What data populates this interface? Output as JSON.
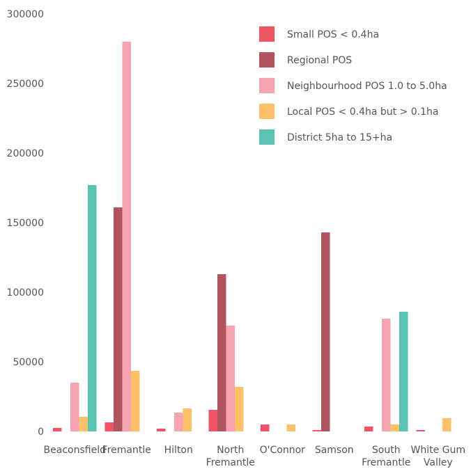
{
  "chart_data": {
    "type": "bar",
    "title": "",
    "xlabel": "",
    "ylabel": "",
    "ylim": [
      0,
      300000
    ],
    "yticks": [
      0,
      50000,
      100000,
      150000,
      200000,
      250000,
      300000
    ],
    "ytick_labels": [
      "0",
      "50000",
      "100000",
      "150000",
      "200000",
      "250000",
      "300000"
    ],
    "grid": false,
    "legend_position": "top-right",
    "categories": [
      [
        "Beaconsfield"
      ],
      [
        "Fremantle"
      ],
      [
        "Hilton"
      ],
      [
        "North",
        "Fremantle"
      ],
      [
        "O'Connor"
      ],
      [
        "Samson"
      ],
      [
        "South",
        "Fremantle"
      ],
      [
        "White Gum",
        "Valley"
      ]
    ],
    "series": [
      {
        "name": "Small POS < 0.4ha",
        "color": "#ef5466",
        "values": [
          2500,
          6500,
          2000,
          15500,
          5000,
          1000,
          3500,
          1000
        ]
      },
      {
        "name": "Regional POS",
        "color": "#b05560",
        "values": [
          0,
          161000,
          0,
          113000,
          0,
          143000,
          0,
          0
        ]
      },
      {
        "name": "Neighbourhood POS 1.0 to 5.0ha",
        "color": "#f7a4b2",
        "values": [
          35000,
          280000,
          13500,
          76000,
          0,
          0,
          81000,
          0
        ]
      },
      {
        "name": "Local POS < 0.4ha but > 0.1ha",
        "color": "#fec16b",
        "values": [
          10500,
          43500,
          16500,
          32000,
          5000,
          0,
          5000,
          9500
        ]
      },
      {
        "name": "District 5ha to 15+ha",
        "color": "#5bc1b1",
        "values": [
          177000,
          0,
          0,
          0,
          0,
          0,
          86000,
          0
        ]
      }
    ]
  }
}
